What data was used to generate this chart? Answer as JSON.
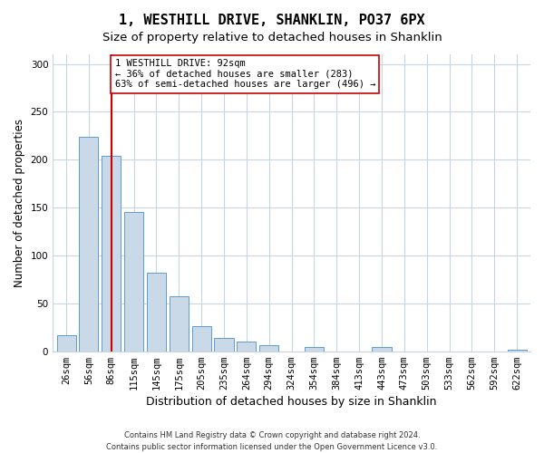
{
  "title": "1, WESTHILL DRIVE, SHANKLIN, PO37 6PX",
  "subtitle": "Size of property relative to detached houses in Shanklin",
  "xlabel": "Distribution of detached houses by size in Shanklin",
  "ylabel": "Number of detached properties",
  "bar_labels": [
    "26sqm",
    "56sqm",
    "86sqm",
    "115sqm",
    "145sqm",
    "175sqm",
    "205sqm",
    "235sqm",
    "264sqm",
    "294sqm",
    "324sqm",
    "354sqm",
    "384sqm",
    "413sqm",
    "443sqm",
    "473sqm",
    "503sqm",
    "533sqm",
    "562sqm",
    "592sqm",
    "622sqm"
  ],
  "bar_values": [
    17,
    224,
    204,
    145,
    82,
    57,
    26,
    14,
    10,
    6,
    0,
    4,
    0,
    0,
    4,
    0,
    0,
    0,
    0,
    0,
    2
  ],
  "bar_color": "#c9d9e8",
  "bar_edge_color": "#5b9bd5",
  "vline_x_idx": 2,
  "vline_color": "#cc0000",
  "annotation_line1": "1 WESTHILL DRIVE: 92sqm",
  "annotation_line2": "← 36% of detached houses are smaller (283)",
  "annotation_line3": "63% of semi-detached houses are larger (496) →",
  "annotation_box_color": "#ffffff",
  "annotation_box_edge": "#cc0000",
  "ylim": [
    0,
    310
  ],
  "yticks": [
    0,
    50,
    100,
    150,
    200,
    250,
    300
  ],
  "footer_line1": "Contains HM Land Registry data © Crown copyright and database right 2024.",
  "footer_line2": "Contains public sector information licensed under the Open Government Licence v3.0.",
  "bg_color": "#ffffff",
  "grid_color": "#c8d4e0",
  "title_fontsize": 11,
  "subtitle_fontsize": 9.5,
  "xlabel_fontsize": 9,
  "ylabel_fontsize": 8.5,
  "tick_fontsize": 7.5,
  "annotation_fontsize": 7.5,
  "footer_fontsize": 6
}
